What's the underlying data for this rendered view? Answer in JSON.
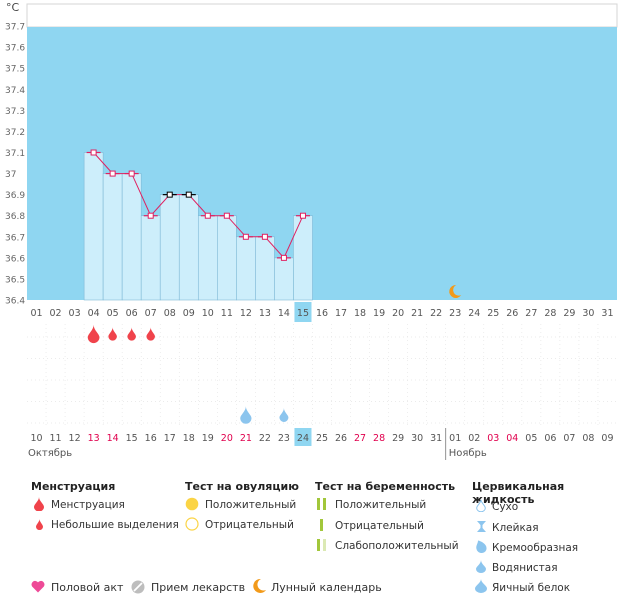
{
  "chart_data": {
    "type": "line",
    "unit_label": "°C",
    "ylim": [
      36.4,
      37.8
    ],
    "y_ticks": [
      "37.7",
      "37.6",
      "37.5",
      "37.4",
      "37.3",
      "37.2",
      "37.1",
      "37",
      "36.9",
      "36.8",
      "36.7",
      "36.6",
      "36.5",
      "36.4"
    ],
    "cycle_days": [
      "01",
      "02",
      "03",
      "04",
      "05",
      "06",
      "07",
      "08",
      "09",
      "10",
      "11",
      "12",
      "13",
      "14",
      "15",
      "16",
      "17",
      "18",
      "19",
      "20",
      "21",
      "22",
      "23",
      "24",
      "25",
      "26",
      "27",
      "28",
      "29",
      "30",
      "31"
    ],
    "current_cycle_day": "15",
    "calendar_dates": [
      {
        "label": "10",
        "weekend": false
      },
      {
        "label": "11",
        "weekend": false
      },
      {
        "label": "12",
        "weekend": false
      },
      {
        "label": "13",
        "weekend": true
      },
      {
        "label": "14",
        "weekend": true
      },
      {
        "label": "15",
        "weekend": false
      },
      {
        "label": "16",
        "weekend": false
      },
      {
        "label": "17",
        "weekend": false
      },
      {
        "label": "18",
        "weekend": false
      },
      {
        "label": "19",
        "weekend": false
      },
      {
        "label": "20",
        "weekend": true
      },
      {
        "label": "21",
        "weekend": true
      },
      {
        "label": "22",
        "weekend": false
      },
      {
        "label": "23",
        "weekend": false
      },
      {
        "label": "24",
        "weekend": false
      },
      {
        "label": "25",
        "weekend": false
      },
      {
        "label": "26",
        "weekend": false
      },
      {
        "label": "27",
        "weekend": true
      },
      {
        "label": "28",
        "weekend": true
      },
      {
        "label": "29",
        "weekend": false
      },
      {
        "label": "30",
        "weekend": false
      },
      {
        "label": "31",
        "weekend": false
      },
      {
        "label": "01",
        "weekend": false
      },
      {
        "label": "02",
        "weekend": false
      },
      {
        "label": "03",
        "weekend": true
      },
      {
        "label": "04",
        "weekend": true
      },
      {
        "label": "05",
        "weekend": false
      },
      {
        "label": "06",
        "weekend": false
      },
      {
        "label": "07",
        "weekend": false
      },
      {
        "label": "08",
        "weekend": false
      },
      {
        "label": "09",
        "weekend": false
      }
    ],
    "today_date": "24",
    "month_labels": [
      {
        "label": "Октябрь",
        "start_index": 0
      },
      {
        "label": "Ноябрь",
        "start_index": 22
      }
    ],
    "temperatures": [
      {
        "day": "04",
        "value": 37.1,
        "marker": "normal"
      },
      {
        "day": "05",
        "value": 37.0,
        "marker": "normal"
      },
      {
        "day": "06",
        "value": 37.0,
        "marker": "normal"
      },
      {
        "day": "07",
        "value": 36.8,
        "marker": "normal"
      },
      {
        "day": "08",
        "value": 36.9,
        "marker": "black"
      },
      {
        "day": "09",
        "value": 36.9,
        "marker": "black"
      },
      {
        "day": "10",
        "value": 36.8,
        "marker": "normal"
      },
      {
        "day": "11",
        "value": 36.8,
        "marker": "normal"
      },
      {
        "day": "12",
        "value": 36.7,
        "marker": "normal"
      },
      {
        "day": "13",
        "value": 36.7,
        "marker": "normal"
      },
      {
        "day": "14",
        "value": 36.6,
        "marker": "normal"
      },
      {
        "day": "15",
        "value": 36.8,
        "marker": "normal"
      }
    ],
    "moon_day": "23",
    "menstruation_markers": [
      {
        "day": "04",
        "type": "heavy"
      },
      {
        "day": "05",
        "type": "light"
      },
      {
        "day": "06",
        "type": "light"
      },
      {
        "day": "07",
        "type": "light"
      }
    ],
    "cervical_fluid_markers": [
      {
        "day": "12",
        "type": "egg-white"
      },
      {
        "day": "14",
        "type": "watery"
      }
    ],
    "colors": {
      "plot_bg": "#8fd6f1",
      "bar_fill": "#cdeefb",
      "bar_stroke": "#7fb9d6",
      "line": "#e02060",
      "accent_black": "#000000",
      "weekend": "#e0004d",
      "today_bg": "#8fd6f1",
      "moon": "#f29a1a",
      "drop": "#f0434b",
      "fluid": "#8cc5ee"
    }
  },
  "legend": {
    "menstruation": {
      "title": "Менструация",
      "items": [
        {
          "label": "Менструация",
          "icon": "heavy-drop-icon"
        },
        {
          "label": "Небольшие выделения",
          "icon": "light-drop-icon"
        }
      ]
    },
    "ovulation_test": {
      "title": "Тест на овуляцию",
      "items": [
        {
          "label": "Положительный",
          "icon": "filled-circle-icon"
        },
        {
          "label": "Отрицательный",
          "icon": "empty-circle-icon"
        }
      ]
    },
    "pregnancy_test": {
      "title": "Тест на беременность",
      "items": [
        {
          "label": "Положительный",
          "icon": "two-lines-icon"
        },
        {
          "label": "Отрицательный",
          "icon": "one-line-icon"
        },
        {
          "label": "Слабоположительный",
          "icon": "faint-line-icon"
        }
      ]
    },
    "cervical_fluid": {
      "title": "Цервикальная жидкость",
      "items": [
        {
          "label": "Сухо",
          "icon": "dry-drop-icon"
        },
        {
          "label": "Клейкая",
          "icon": "sticky-icon"
        },
        {
          "label": "Кремообразная",
          "icon": "creamy-drop-icon"
        },
        {
          "label": "Водянистая",
          "icon": "watery-drop-icon"
        },
        {
          "label": "Яичный белок",
          "icon": "egg-white-drop-icon"
        }
      ]
    }
  },
  "bottom_legend": [
    {
      "label": "Половой акт",
      "icon": "heart-icon"
    },
    {
      "label": "Прием лекарств",
      "icon": "pill-icon"
    },
    {
      "label": "Лунный календарь",
      "icon": "moon-icon"
    }
  ]
}
